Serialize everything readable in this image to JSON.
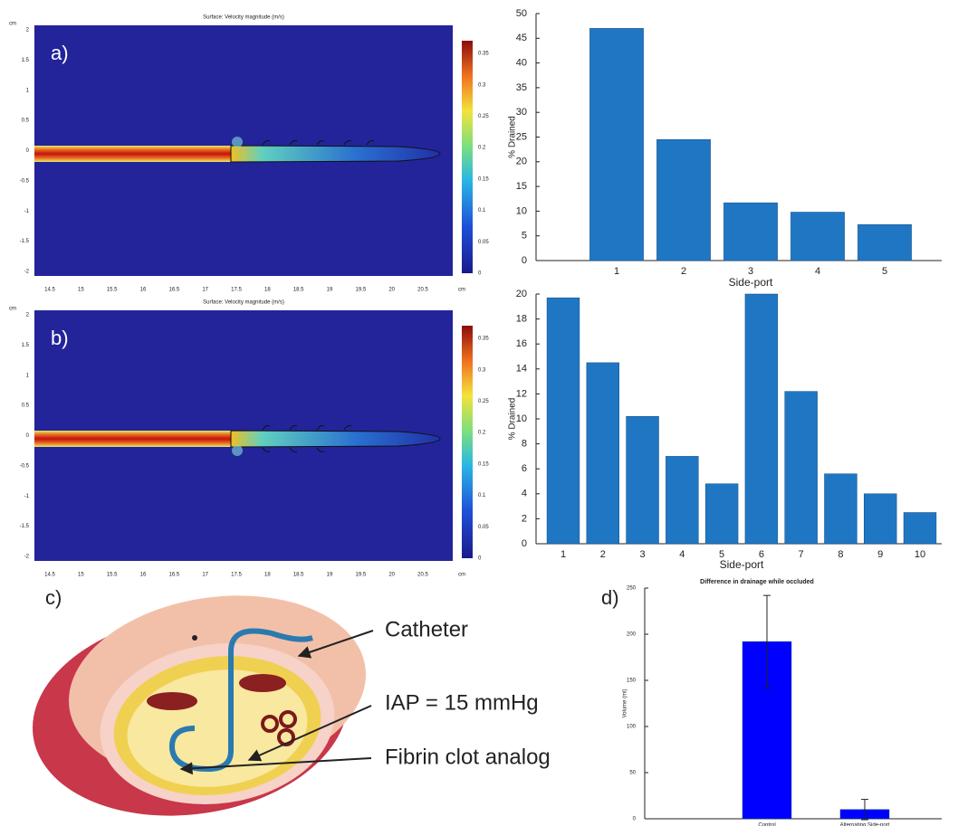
{
  "simulations": [
    {
      "label": "a)",
      "title": "Surface: Velocity magnitude (m/s)",
      "unit": "cm",
      "xticks": [
        14.5,
        15,
        15.5,
        16,
        16.5,
        17,
        17.5,
        18,
        18.5,
        19,
        19.5,
        20,
        20.5
      ],
      "yticks": [
        2,
        1.5,
        1,
        0.5,
        0,
        -0.5,
        -1,
        -1.5,
        -2
      ],
      "colorbar_ticks": [
        0.35,
        0.3,
        0.25,
        0.2,
        0.15,
        0.1,
        0.05,
        0
      ]
    },
    {
      "label": "b)",
      "title": "Surface: Velocity magnitude (m/s)",
      "unit": "cm",
      "xticks": [
        14.5,
        15,
        15.5,
        16,
        16.5,
        17,
        17.5,
        18,
        18.5,
        19,
        19.5,
        20,
        20.5
      ],
      "yticks": [
        2,
        1.5,
        1,
        0.5,
        0,
        -0.5,
        -1,
        -1.5,
        -2
      ],
      "colorbar_ticks": [
        0.35,
        0.3,
        0.25,
        0.2,
        0.15,
        0.1,
        0.05,
        0
      ]
    }
  ],
  "illustration": {
    "label": "c)",
    "annotations": [
      "Catheter",
      "IAP = 15 mmHg",
      "Fibrin clot analog"
    ]
  },
  "chart_data": [
    {
      "type": "bar",
      "xlabel": "Side-port",
      "ylabel": "% Drained",
      "categories": [
        "1",
        "2",
        "3",
        "4",
        "5"
      ],
      "values": [
        47,
        24.5,
        11.7,
        9.8,
        7.3
      ],
      "color": "#1f77c4",
      "ylim": [
        0,
        50
      ],
      "yticks": [
        0,
        5,
        10,
        15,
        20,
        25,
        30,
        35,
        40,
        45,
        50
      ]
    },
    {
      "type": "bar",
      "xlabel": "Side-port",
      "ylabel": "% Drained",
      "categories": [
        "1",
        "2",
        "3",
        "4",
        "5",
        "6",
        "7",
        "8",
        "9",
        "10"
      ],
      "values": [
        19.7,
        14.5,
        10.2,
        7,
        4.8,
        20,
        12.2,
        5.6,
        4,
        2.5
      ],
      "color": "#1f77c4",
      "ylim": [
        0,
        20
      ],
      "yticks": [
        0,
        2,
        4,
        6,
        8,
        10,
        12,
        14,
        16,
        18,
        20
      ]
    },
    {
      "type": "bar",
      "panel_label": "d)",
      "title": "Difference in drainage while occluded",
      "ylabel": "Volume (ml)",
      "categories": [
        "Control",
        "Alternating Side-port"
      ],
      "values": [
        192,
        10
      ],
      "errors": [
        50,
        11
      ],
      "color": "#0000ff",
      "ylim": [
        0,
        250
      ],
      "yticks": [
        0,
        50,
        100,
        150,
        200,
        250
      ]
    }
  ]
}
